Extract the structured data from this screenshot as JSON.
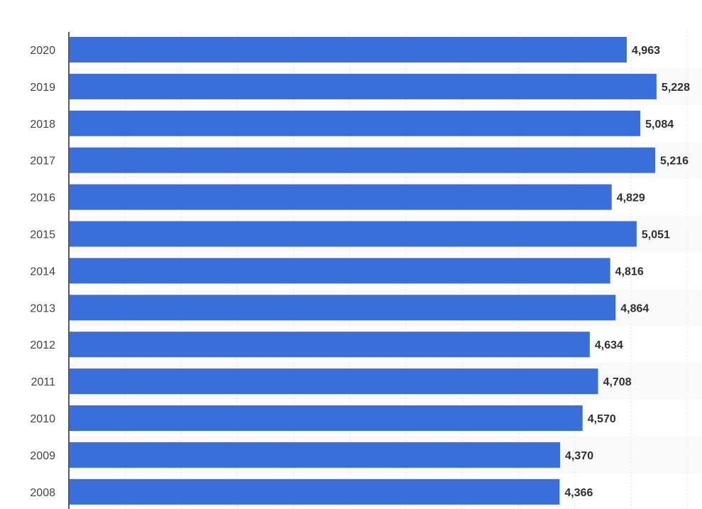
{
  "colors": {
    "bar": "#3a6fdb",
    "axis": "#222222",
    "grid": "#e5e5e5",
    "tick_text": "#444444",
    "label_text": "#2f2f2f",
    "band": "#fafafa"
  },
  "chart_data": {
    "type": "bar",
    "orientation": "horizontal",
    "categories": [
      "2020",
      "2019",
      "2018",
      "2017",
      "2016",
      "2015",
      "2014",
      "2013",
      "2012",
      "2011",
      "2010",
      "2009",
      "2008"
    ],
    "values": [
      4963,
      5228,
      5084,
      5216,
      4829,
      5051,
      4816,
      4864,
      4634,
      4708,
      4570,
      4370,
      4366
    ],
    "value_labels": [
      "4,963",
      "5,228",
      "5,084",
      "5,216",
      "4,829",
      "5,051",
      "4,816",
      "4,864",
      "4,634",
      "4,708",
      "4,570",
      "4,370",
      "4,366"
    ],
    "title": "",
    "xlabel": "",
    "ylabel": "",
    "xlim": [
      0,
      5500
    ],
    "grid": true,
    "legend": "none"
  }
}
